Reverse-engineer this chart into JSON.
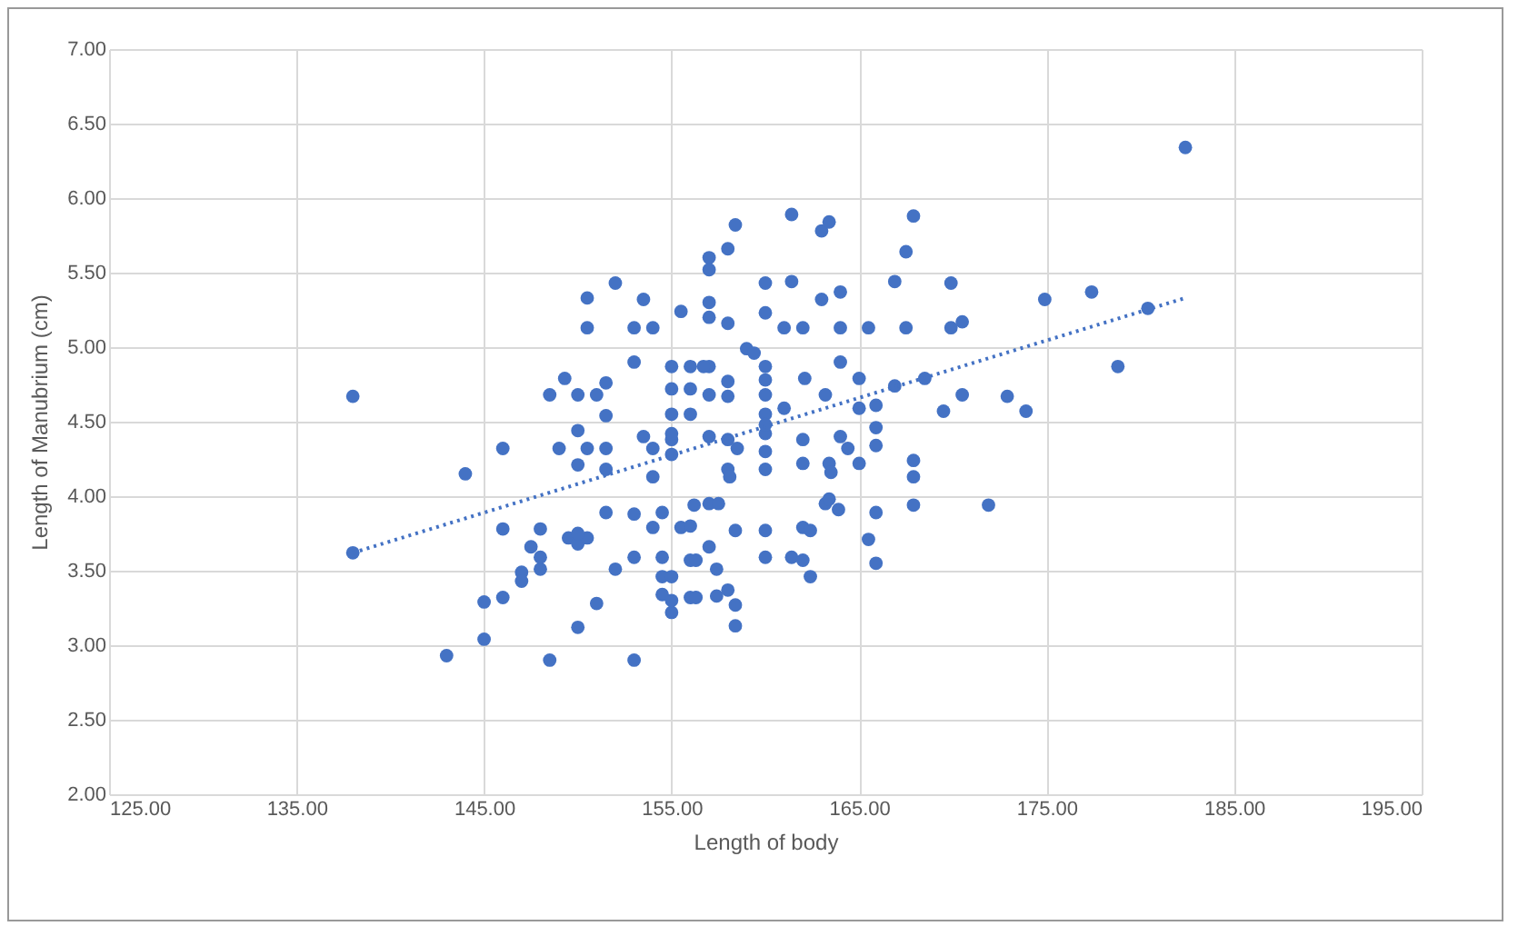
{
  "chart_data": {
    "type": "scatter",
    "xlabel": "Length  of body",
    "ylabel": "Length of Manubrium (cm)",
    "grid": true,
    "marker": "circle",
    "xlim": [
      125,
      195
    ],
    "ylim": [
      2,
      7
    ],
    "xticks": [
      {
        "value": 125,
        "label": "125.00"
      },
      {
        "value": 135,
        "label": "135.00"
      },
      {
        "value": 145,
        "label": "145.00"
      },
      {
        "value": 155,
        "label": "155.00"
      },
      {
        "value": 165,
        "label": "165.00"
      },
      {
        "value": 175,
        "label": "175.00"
      },
      {
        "value": 185,
        "label": "185.00"
      },
      {
        "value": 195,
        "label": "195.00"
      }
    ],
    "yticks": [
      {
        "value": 2,
        "label": "2.00"
      },
      {
        "value": 2.5,
        "label": "2.50"
      },
      {
        "value": 3,
        "label": "3.00"
      },
      {
        "value": 3.5,
        "label": "3.50"
      },
      {
        "value": 4,
        "label": "4.00"
      },
      {
        "value": 4.5,
        "label": "4.50"
      },
      {
        "value": 5,
        "label": "5.00"
      },
      {
        "value": 5.5,
        "label": "5.50"
      },
      {
        "value": 6,
        "label": "6.00"
      },
      {
        "value": 6.5,
        "label": "6.50"
      },
      {
        "value": 7,
        "label": "7.00"
      }
    ],
    "series": [
      {
        "color": "#4472c4",
        "x": [
          138.0,
          138.0,
          143.0,
          145.0,
          145.0,
          146.0,
          148.5,
          153.0,
          150.0,
          151.0,
          147.0,
          147.0,
          148.0,
          147.5,
          148.0,
          146.0,
          148.0,
          149.5,
          150.0,
          150.5,
          150.0,
          151.5,
          152.0,
          153.0,
          153.0,
          154.0,
          154.5,
          154.5,
          154.5,
          154.5,
          155.0,
          155.0,
          156.0,
          155.0,
          156.0,
          155.5,
          156.0,
          156.2,
          144.0,
          146.0,
          149.0,
          150.0,
          150.0,
          150.5,
          151.5,
          151.5,
          151.5,
          153.5,
          154.0,
          154.0,
          155.0,
          155.0,
          148.5,
          149.3,
          150.0,
          151.0,
          151.5,
          153.0,
          150.5,
          150.5,
          152.0,
          153.5,
          153.0,
          154.0,
          155.5,
          155.0,
          155.0,
          156.0,
          156.0,
          156.0,
          155.0,
          155.0,
          157.0,
          157.0,
          157.0,
          157.0,
          157.0,
          157.0,
          157.0,
          158.4,
          161.4,
          163.0,
          163.4,
          167.9,
          167.5,
          158.0,
          160.0,
          161.4,
          163.0,
          164.0,
          166.9,
          169.9,
          174.9,
          158.0,
          160.0,
          161.0,
          162.0,
          164.0,
          165.5,
          167.5,
          169.9,
          170.5,
          159.0,
          159.4,
          164.0,
          165.0,
          162.1,
          166.9,
          168.5,
          170.5,
          172.9,
          173.9,
          169.5,
          160.0,
          160.0,
          160.0,
          160.0,
          160.0,
          160.0,
          160.0,
          160.0,
          156.7,
          158.0,
          158.0,
          161.0,
          163.2,
          165.0,
          165.9,
          162.0,
          164.0,
          164.4,
          165.9,
          165.9,
          158.0,
          158.5,
          158.0,
          158.1,
          162.0,
          163.4,
          163.5,
          165.0,
          167.9,
          167.9,
          157.0,
          157.5,
          163.2,
          163.9,
          165.9,
          167.9,
          171.9,
          163.4,
          158.4,
          160.0,
          162.0,
          162.4,
          165.5,
          157.0,
          156.3,
          160.0,
          161.4,
          162.0,
          162.4,
          165.9,
          157.4,
          156.3,
          157.4,
          158.0,
          158.4,
          158.4,
          182.4,
          177.4,
          180.4,
          178.8
        ],
        "values": [
          4.67,
          3.62,
          2.93,
          3.04,
          3.29,
          3.32,
          2.9,
          2.9,
          3.12,
          3.28,
          3.49,
          3.43,
          3.51,
          3.66,
          3.59,
          3.78,
          3.78,
          3.72,
          3.68,
          3.72,
          3.75,
          3.89,
          3.51,
          3.88,
          3.59,
          3.79,
          3.89,
          3.59,
          3.46,
          3.34,
          3.22,
          3.3,
          3.32,
          3.46,
          3.57,
          3.79,
          3.8,
          3.94,
          4.15,
          4.32,
          4.32,
          4.44,
          4.21,
          4.32,
          4.32,
          4.18,
          4.54,
          4.4,
          4.32,
          4.13,
          4.38,
          4.28,
          4.68,
          4.79,
          4.68,
          4.68,
          4.76,
          4.9,
          5.33,
          5.13,
          5.43,
          5.32,
          5.13,
          5.13,
          5.24,
          4.87,
          4.72,
          4.87,
          4.72,
          4.55,
          4.55,
          4.42,
          5.6,
          5.52,
          5.3,
          5.2,
          4.87,
          4.68,
          4.4,
          5.82,
          5.89,
          5.78,
          5.84,
          5.88,
          5.64,
          5.66,
          5.43,
          5.44,
          5.32,
          5.37,
          5.44,
          5.43,
          5.32,
          5.16,
          5.23,
          5.13,
          5.13,
          5.13,
          5.13,
          5.13,
          5.13,
          5.17,
          4.99,
          4.96,
          4.9,
          4.79,
          4.79,
          4.74,
          4.79,
          4.68,
          4.67,
          4.57,
          4.57,
          4.87,
          4.78,
          4.68,
          4.55,
          4.42,
          4.3,
          4.18,
          4.48,
          4.87,
          4.77,
          4.67,
          4.59,
          4.68,
          4.59,
          4.61,
          4.38,
          4.4,
          4.32,
          4.46,
          4.34,
          4.38,
          4.32,
          4.18,
          4.13,
          4.22,
          4.22,
          4.16,
          4.22,
          4.24,
          4.13,
          3.95,
          3.95,
          3.95,
          3.91,
          3.89,
          3.94,
          3.94,
          3.98,
          3.77,
          3.77,
          3.79,
          3.77,
          3.71,
          3.66,
          3.57,
          3.59,
          3.59,
          3.57,
          3.46,
          3.55,
          3.51,
          3.32,
          3.33,
          3.37,
          3.27,
          3.13,
          6.34,
          5.37,
          5.26,
          4.87
        ]
      },
      {
        "type": "line",
        "color": "#4472c4",
        "line_style": "dotted",
        "marker": "none",
        "x": [
          138.0,
          182.4
        ],
        "values": [
          3.62,
          5.33
        ]
      }
    ]
  }
}
